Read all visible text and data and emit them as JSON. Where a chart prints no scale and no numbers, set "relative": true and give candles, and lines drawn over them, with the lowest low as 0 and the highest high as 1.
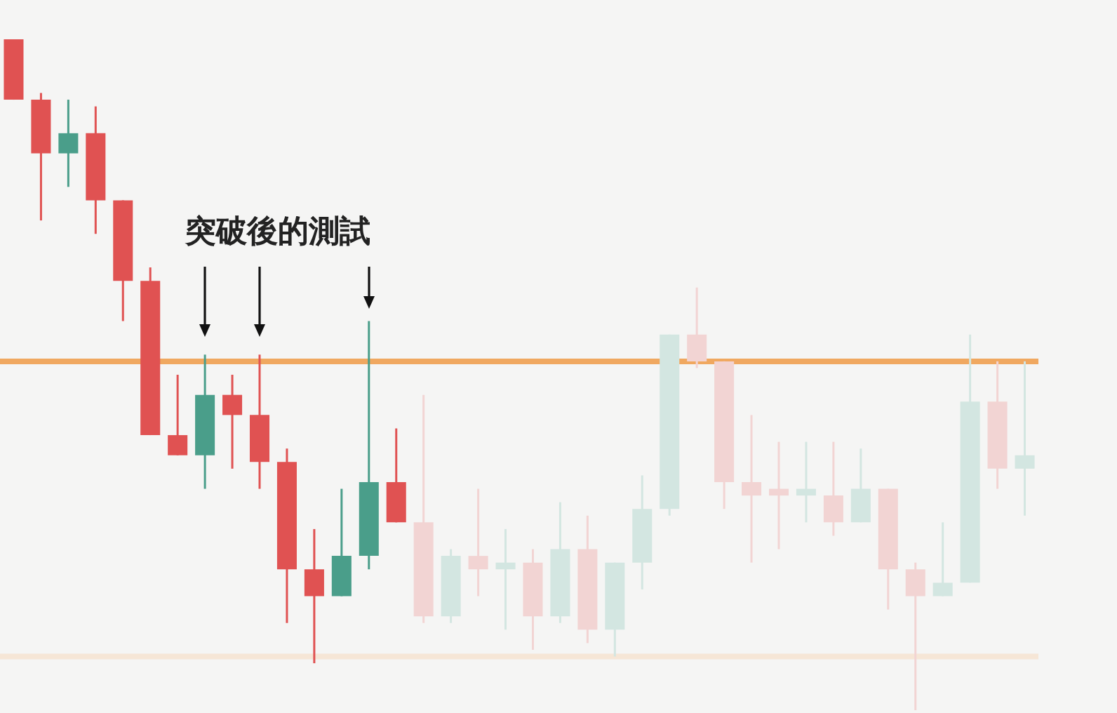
{
  "chart_data": {
    "type": "candlestick",
    "relative": true,
    "categories": [
      null,
      null,
      null,
      null,
      null,
      null,
      null,
      null,
      null,
      null,
      null,
      null,
      null,
      null,
      null,
      null,
      null,
      null,
      null,
      null,
      null,
      null,
      null,
      null,
      null,
      null,
      null,
      null,
      null,
      null,
      null,
      null,
      null,
      null,
      null,
      null,
      null,
      null
    ],
    "ohlc": [
      [
        1,
        1,
        0.91,
        0.91
      ],
      [
        0.91,
        0.92,
        0.73,
        0.83
      ],
      [
        0.83,
        0.91,
        0.78,
        0.86
      ],
      [
        0.86,
        0.9,
        0.71,
        0.76
      ],
      [
        0.76,
        0.76,
        0.58,
        0.64
      ],
      [
        0.64,
        0.66,
        0.41,
        0.41
      ],
      [
        0.41,
        0.5,
        0.38,
        0.38
      ],
      [
        0.38,
        0.53,
        0.33,
        0.47
      ],
      [
        0.47,
        0.5,
        0.36,
        0.44
      ],
      [
        0.44,
        0.53,
        0.33,
        0.37
      ],
      [
        0.37,
        0.39,
        0.13,
        0.21
      ],
      [
        0.21,
        0.27,
        0.07,
        0.17
      ],
      [
        0.17,
        0.33,
        0.17,
        0.23
      ],
      [
        0.23,
        0.58,
        0.21,
        0.34
      ],
      [
        0.34,
        0.42,
        0.28,
        0.28
      ],
      [
        0.28,
        0.47,
        0.13,
        0.14
      ],
      [
        0.14,
        0.24,
        0.13,
        0.23
      ],
      [
        0.23,
        0.33,
        0.17,
        0.21
      ],
      [
        0.21,
        0.27,
        0.12,
        0.22
      ],
      [
        0.22,
        0.24,
        0.09,
        0.14
      ],
      [
        0.14,
        0.31,
        0.13,
        0.24
      ],
      [
        0.24,
        0.29,
        0.1,
        0.12
      ],
      [
        0.12,
        0.22,
        0.08,
        0.22
      ],
      [
        0.22,
        0.35,
        0.18,
        0.3
      ],
      [
        0.3,
        0.56,
        0.29,
        0.56
      ],
      [
        0.56,
        0.63,
        0.51,
        0.52
      ],
      [
        0.52,
        0.52,
        0.3,
        0.34
      ],
      [
        0.34,
        0.44,
        0.22,
        0.32
      ],
      [
        0.33,
        0.4,
        0.24,
        0.32
      ],
      [
        0.32,
        0.4,
        0.28,
        0.33
      ],
      [
        0.32,
        0.4,
        0.26,
        0.28
      ],
      [
        0.28,
        0.39,
        0.28,
        0.33
      ],
      [
        0.33,
        0.33,
        0.15,
        0.21
      ],
      [
        0.21,
        0.22,
        0,
        0.17
      ],
      [
        0.17,
        0.28,
        0.17,
        0.19
      ],
      [
        0.19,
        0.56,
        0.19,
        0.46
      ],
      [
        0.46,
        0.52,
        0.33,
        0.36
      ],
      [
        0.36,
        0.52,
        0.29,
        0.38
      ]
    ],
    "colors": [
      "#e05252",
      "#e05252",
      "#4a9e8a",
      "#e05252",
      "#e05252",
      "#e05252",
      "#e05252",
      "#4a9e8a",
      "#e05252",
      "#e05252",
      "#e05252",
      "#e05252",
      "#4a9e8a",
      "#4a9e8a",
      "#e05252",
      "#f2d4d3",
      "#d3e6e1",
      "#f2d4d3",
      "#d3e6e1",
      "#f2d4d3",
      "#d3e6e1",
      "#f2d4d3",
      "#d3e6e1",
      "#d3e6e1",
      "#d3e6e1",
      "#f2d4d3",
      "#f2d4d3",
      "#f2d4d3",
      "#f2d4d3",
      "#d3e6e1",
      "#f2d4d3",
      "#d3e6e1",
      "#f2d4d3",
      "#f2d4d3",
      "#d3e6e1",
      "#d3e6e1",
      "#f2d4d3",
      "#d3e6e1"
    ],
    "ref_lines": [
      {
        "axis": "y",
        "value": 0.52,
        "color": "#f0a860"
      },
      {
        "axis": "y",
        "value": 0.08,
        "color": "#f6e6d6"
      }
    ],
    "annotations": [
      "突破後的測試"
    ]
  }
}
